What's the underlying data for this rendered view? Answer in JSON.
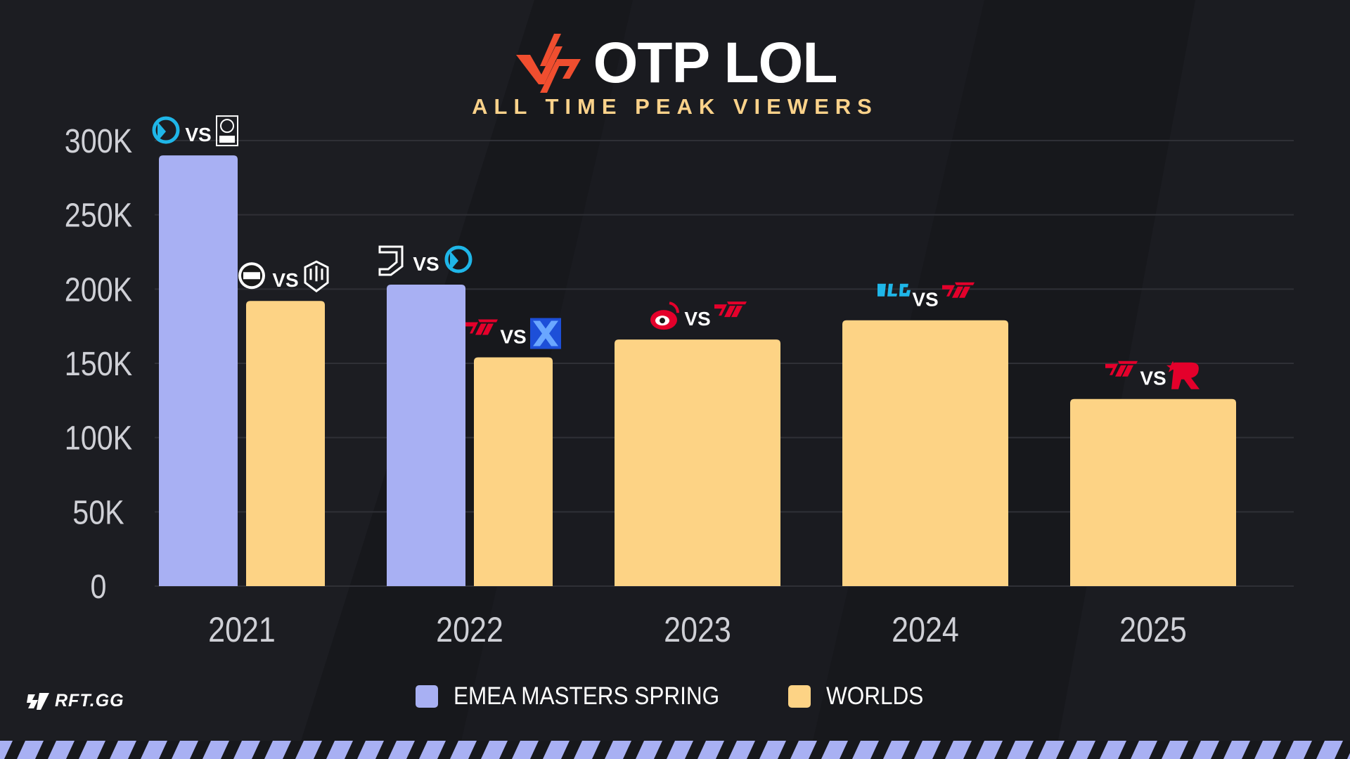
{
  "brand": {
    "name": "OTP LOL",
    "subtitle": "ALL TIME PEAK VIEWERS",
    "accent_color": "#f04e2f"
  },
  "footer": {
    "logo_text": "RFT.GG"
  },
  "legend": [
    {
      "label": "EMEA MASTERS SPRING",
      "color": "#a8b0f3"
    },
    {
      "label": "WORLDS",
      "color": "#fdd385"
    }
  ],
  "chart_data": {
    "type": "bar",
    "title": "",
    "xlabel": "",
    "ylabel": "",
    "ylim": [
      0,
      300000
    ],
    "yticks": [
      0,
      50000,
      100000,
      150000,
      200000,
      250000,
      300000
    ],
    "ytick_labels": [
      "0",
      "50K",
      "100K",
      "150K",
      "200K",
      "250K",
      "300K"
    ],
    "grid": true,
    "legend_position": "bottom",
    "categories": [
      "2021",
      "2022",
      "2023",
      "2024",
      "2025"
    ],
    "series": [
      {
        "name": "EMEA MASTERS SPRING",
        "color": "#a8b0f3",
        "values": [
          290000,
          203000,
          null,
          null,
          null
        ]
      },
      {
        "name": "WORLDS",
        "color": "#fdd385",
        "values": [
          192000,
          154000,
          166000,
          179000,
          126000
        ]
      }
    ],
    "matchups": [
      {
        "category": "2021",
        "series": "EMEA MASTERS SPRING",
        "vs": "VS",
        "team_a_icon": "karmine-corp-logo-icon",
        "team_b_icon": "bt-excel-logo-icon"
      },
      {
        "category": "2021",
        "series": "WORLDS",
        "vs": "VS",
        "team_a_icon": "edg-logo-icon",
        "team_b_icon": "dwg-kia-logo-icon"
      },
      {
        "category": "2022",
        "series": "EMEA MASTERS SPRING",
        "vs": "VS",
        "team_a_icon": "los-heretics-logo-icon",
        "team_b_icon": "karmine-corp-logo-icon"
      },
      {
        "category": "2022",
        "series": "WORLDS",
        "vs": "VS",
        "team_a_icon": "t1-logo-icon",
        "team_b_icon": "drx-logo-icon"
      },
      {
        "category": "2023",
        "series": "WORLDS",
        "vs": "VS",
        "team_a_icon": "weibo-gaming-logo-icon",
        "team_b_icon": "t1-logo-icon"
      },
      {
        "category": "2024",
        "series": "WORLDS",
        "vs": "VS",
        "team_a_icon": "blg-logo-icon",
        "team_b_icon": "t1-logo-icon"
      },
      {
        "category": "2025",
        "series": "WORLDS",
        "vs": "VS",
        "team_a_icon": "t1-logo-icon",
        "team_b_icon": "kt-rolster-logo-icon"
      }
    ]
  }
}
